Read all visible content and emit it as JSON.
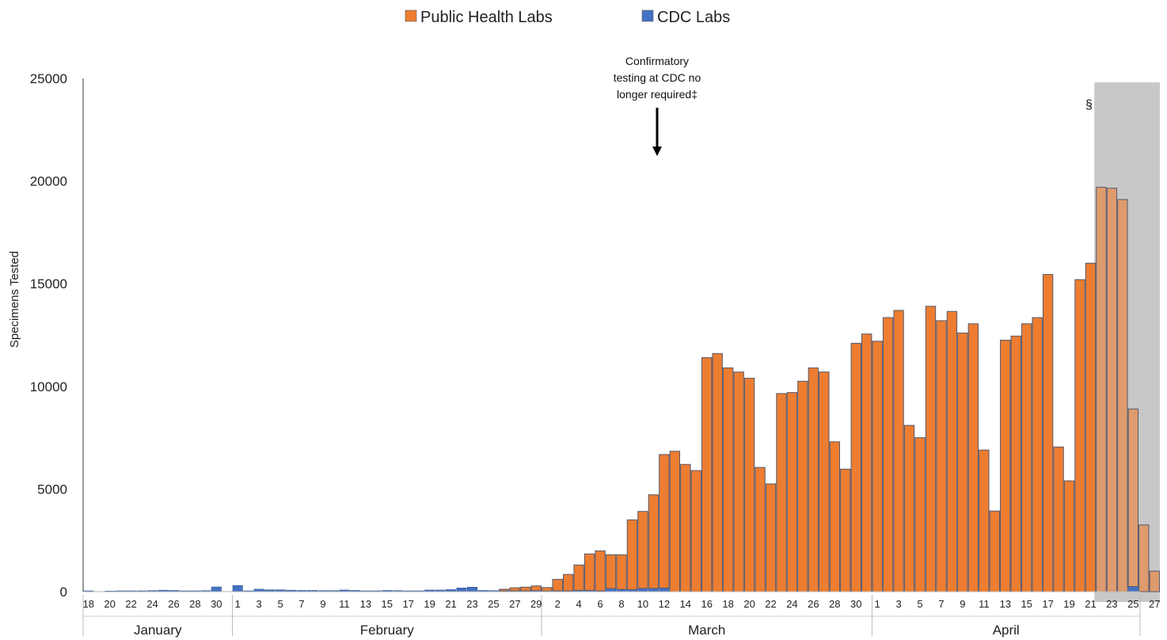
{
  "chart_data": {
    "type": "bar",
    "stacked": true,
    "ylabel": "Specimens Tested",
    "ylim": [
      0,
      25000
    ],
    "yticks": [
      0,
      5000,
      10000,
      15000,
      20000,
      25000
    ],
    "legend": {
      "placement": "top-center",
      "entries": [
        {
          "name": "Public Health Labs",
          "color": "#ED7D31"
        },
        {
          "name": "CDC Labs",
          "color": "#4472C4"
        }
      ]
    },
    "months": [
      {
        "name": "January",
        "start": 0,
        "count": 14
      },
      {
        "name": "February",
        "start": 14,
        "count": 29
      },
      {
        "name": "March",
        "start": 43,
        "count": 31
      },
      {
        "name": "April",
        "start": 74,
        "count": 27
      }
    ],
    "days": [
      18,
      19,
      20,
      21,
      22,
      23,
      24,
      25,
      26,
      27,
      28,
      29,
      30,
      31,
      1,
      2,
      3,
      4,
      5,
      6,
      7,
      8,
      9,
      10,
      11,
      12,
      13,
      14,
      15,
      16,
      17,
      18,
      19,
      20,
      21,
      22,
      23,
      24,
      25,
      26,
      27,
      28,
      29,
      1,
      2,
      3,
      4,
      5,
      6,
      7,
      8,
      9,
      10,
      11,
      12,
      13,
      14,
      15,
      16,
      17,
      18,
      19,
      20,
      21,
      22,
      23,
      24,
      25,
      26,
      27,
      28,
      29,
      30,
      31,
      1,
      2,
      3,
      4,
      5,
      6,
      7,
      8,
      9,
      10,
      11,
      12,
      13,
      14,
      15,
      16,
      17,
      18,
      19,
      20,
      21,
      22,
      23,
      24,
      25,
      26,
      27
    ],
    "tick_labels": [
      "18",
      "",
      "20",
      "",
      "22",
      "",
      "24",
      "",
      "26",
      "",
      "28",
      "",
      "30",
      "",
      "1",
      "",
      "3",
      "",
      "5",
      "",
      "7",
      "",
      "9",
      "",
      "11",
      "",
      "13",
      "",
      "15",
      "",
      "17",
      "",
      "19",
      "",
      "21",
      "",
      "23",
      "",
      "25",
      "",
      "27",
      "",
      "29",
      "",
      "2",
      "",
      "4",
      "",
      "6",
      "",
      "8",
      "",
      "10",
      "",
      "12",
      "",
      "14",
      "",
      "16",
      "",
      "18",
      "",
      "20",
      "",
      "22",
      "",
      "24",
      "",
      "26",
      "",
      "28",
      "",
      "30",
      "",
      "1",
      "",
      "3",
      "",
      "5",
      "",
      "7",
      "",
      "9",
      "",
      "11",
      "",
      "13",
      "",
      "15",
      "",
      "17",
      "",
      "19",
      "",
      "21",
      "",
      "23",
      "",
      "25",
      "",
      "27"
    ],
    "series": [
      {
        "name": "Public Health Labs",
        "color": "#ED7D31",
        "values": [
          0,
          0,
          0,
          0,
          0,
          0,
          0,
          0,
          0,
          0,
          0,
          0,
          0,
          0,
          0,
          0,
          0,
          0,
          0,
          0,
          0,
          0,
          0,
          0,
          0,
          0,
          0,
          0,
          0,
          0,
          0,
          0,
          0,
          0,
          0,
          0,
          0,
          0,
          0,
          80,
          150,
          180,
          230,
          170,
          560,
          800,
          1240,
          1780,
          1950,
          1650,
          1690,
          3400,
          3750,
          4560,
          6500,
          6840,
          6200,
          5900,
          11400,
          11600,
          10900,
          10700,
          10400,
          6050,
          5250,
          9650,
          9700,
          10250,
          10900,
          10700,
          7300,
          5970,
          12100,
          12550,
          12200,
          13350,
          13700,
          8100,
          7500,
          13900,
          13200,
          13650,
          12600,
          13050,
          6900,
          3930,
          12250,
          12450,
          13050,
          13350,
          15450,
          7050,
          5400,
          15200,
          16000,
          19700,
          19650,
          19100,
          8650,
          3250,
          1000
        ]
      },
      {
        "name": "CDC Labs",
        "color": "#4472C4",
        "values": [
          40,
          10,
          30,
          40,
          40,
          40,
          50,
          70,
          60,
          40,
          40,
          50,
          230,
          10,
          300,
          40,
          120,
          90,
          90,
          70,
          60,
          60,
          50,
          50,
          80,
          60,
          40,
          40,
          60,
          50,
          40,
          40,
          80,
          80,
          100,
          180,
          220,
          60,
          50,
          40,
          40,
          40,
          50,
          30,
          40,
          40,
          60,
          60,
          40,
          150,
          110,
          100,
          160,
          160,
          180,
          0,
          0,
          0,
          0,
          0,
          0,
          0,
          0,
          0,
          0,
          0,
          0,
          0,
          0,
          0,
          0,
          0,
          0,
          0,
          0,
          0,
          0,
          0,
          0,
          0,
          0,
          0,
          0,
          0,
          0,
          0,
          0,
          0,
          0,
          0,
          0,
          0,
          0,
          0,
          0,
          0,
          0,
          0,
          250,
          0,
          0
        ]
      }
    ],
    "annotations": [
      {
        "lines": [
          "Confirmatory",
          "testing at CDC no",
          "longer required‡"
        ],
        "arrow_at_index": 54
      },
      {
        "text": "§",
        "shaded_from_index": 95
      }
    ]
  }
}
